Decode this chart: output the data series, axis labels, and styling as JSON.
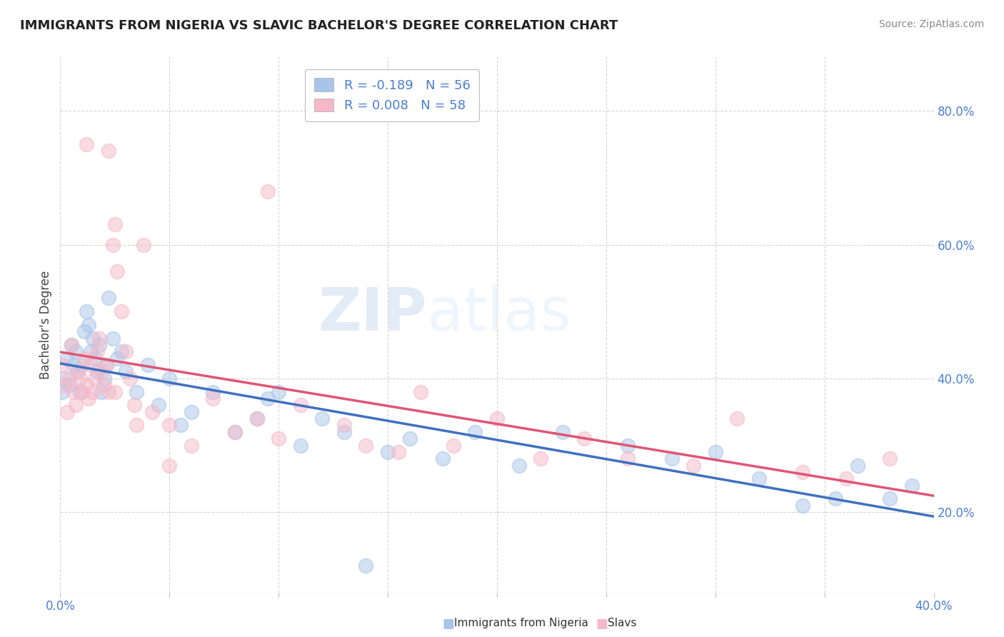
{
  "title": "IMMIGRANTS FROM NIGERIA VS SLAVIC BACHELOR'S DEGREE CORRELATION CHART",
  "source_text": "Source: ZipAtlas.com",
  "ylabel": "Bachelor's Degree",
  "xlim": [
    0.0,
    0.4
  ],
  "ylim": [
    0.08,
    0.88
  ],
  "xticks": [
    0.0,
    0.05,
    0.1,
    0.15,
    0.2,
    0.25,
    0.3,
    0.35,
    0.4
  ],
  "xticklabels": [
    "0.0%",
    "",
    "",
    "",
    "",
    "",
    "",
    "",
    "40.0%"
  ],
  "yticks": [
    0.2,
    0.4,
    0.6,
    0.8
  ],
  "yticklabels": [
    "20.0%",
    "40.0%",
    "60.0%",
    "80.0%"
  ],
  "legend_r1": "R = -0.189",
  "legend_n1": "N = 56",
  "legend_r2": "R = 0.008",
  "legend_n2": "N = 58",
  "color_nigeria": "#a8c4e8",
  "color_slavs": "#f5b8c8",
  "color_title": "#222222",
  "color_axis_labels": "#4a7fd4",
  "color_trendline_nigeria": "#4070c0",
  "color_trendline_slavs": "#e05575",
  "watermark_zip": "ZIP",
  "watermark_atlas": "atlas",
  "grid_color": "#c8c8c8",
  "background_color": "#ffffff",
  "nigeria_x": [
    0.001,
    0.002,
    0.003,
    0.004,
    0.005,
    0.006,
    0.007,
    0.008,
    0.009,
    0.01,
    0.011,
    0.012,
    0.013,
    0.014,
    0.015,
    0.016,
    0.017,
    0.018,
    0.019,
    0.02,
    0.021,
    0.022,
    0.024,
    0.026,
    0.028,
    0.03,
    0.035,
    0.04,
    0.045,
    0.05,
    0.06,
    0.07,
    0.08,
    0.09,
    0.1,
    0.11,
    0.12,
    0.13,
    0.15,
    0.16,
    0.175,
    0.19,
    0.21,
    0.23,
    0.26,
    0.28,
    0.3,
    0.32,
    0.34,
    0.355,
    0.365,
    0.38,
    0.39,
    0.14,
    0.055,
    0.095
  ],
  "nigeria_y": [
    0.38,
    0.4,
    0.43,
    0.39,
    0.45,
    0.42,
    0.44,
    0.41,
    0.38,
    0.42,
    0.47,
    0.5,
    0.48,
    0.44,
    0.46,
    0.43,
    0.41,
    0.45,
    0.38,
    0.4,
    0.42,
    0.52,
    0.46,
    0.43,
    0.44,
    0.41,
    0.38,
    0.42,
    0.36,
    0.4,
    0.35,
    0.38,
    0.32,
    0.34,
    0.38,
    0.3,
    0.34,
    0.32,
    0.29,
    0.31,
    0.28,
    0.32,
    0.27,
    0.32,
    0.3,
    0.28,
    0.29,
    0.25,
    0.21,
    0.22,
    0.27,
    0.22,
    0.24,
    0.12,
    0.33,
    0.37
  ],
  "slavs_x": [
    0.001,
    0.002,
    0.003,
    0.004,
    0.005,
    0.006,
    0.007,
    0.008,
    0.009,
    0.01,
    0.011,
    0.012,
    0.013,
    0.014,
    0.015,
    0.016,
    0.017,
    0.018,
    0.019,
    0.02,
    0.021,
    0.022,
    0.024,
    0.025,
    0.026,
    0.028,
    0.03,
    0.032,
    0.034,
    0.038,
    0.042,
    0.05,
    0.06,
    0.07,
    0.08,
    0.09,
    0.095,
    0.1,
    0.11,
    0.13,
    0.14,
    0.155,
    0.165,
    0.18,
    0.2,
    0.22,
    0.24,
    0.26,
    0.29,
    0.31,
    0.34,
    0.36,
    0.38,
    0.05,
    0.035,
    0.025,
    0.022,
    0.012
  ],
  "slavs_y": [
    0.42,
    0.39,
    0.35,
    0.4,
    0.45,
    0.38,
    0.36,
    0.41,
    0.4,
    0.38,
    0.43,
    0.39,
    0.37,
    0.42,
    0.38,
    0.4,
    0.44,
    0.46,
    0.41,
    0.39,
    0.42,
    0.38,
    0.6,
    0.63,
    0.56,
    0.5,
    0.44,
    0.4,
    0.36,
    0.6,
    0.35,
    0.33,
    0.3,
    0.37,
    0.32,
    0.34,
    0.68,
    0.31,
    0.36,
    0.33,
    0.3,
    0.29,
    0.38,
    0.3,
    0.34,
    0.28,
    0.31,
    0.28,
    0.27,
    0.34,
    0.26,
    0.25,
    0.28,
    0.27,
    0.33,
    0.38,
    0.74,
    0.75
  ]
}
